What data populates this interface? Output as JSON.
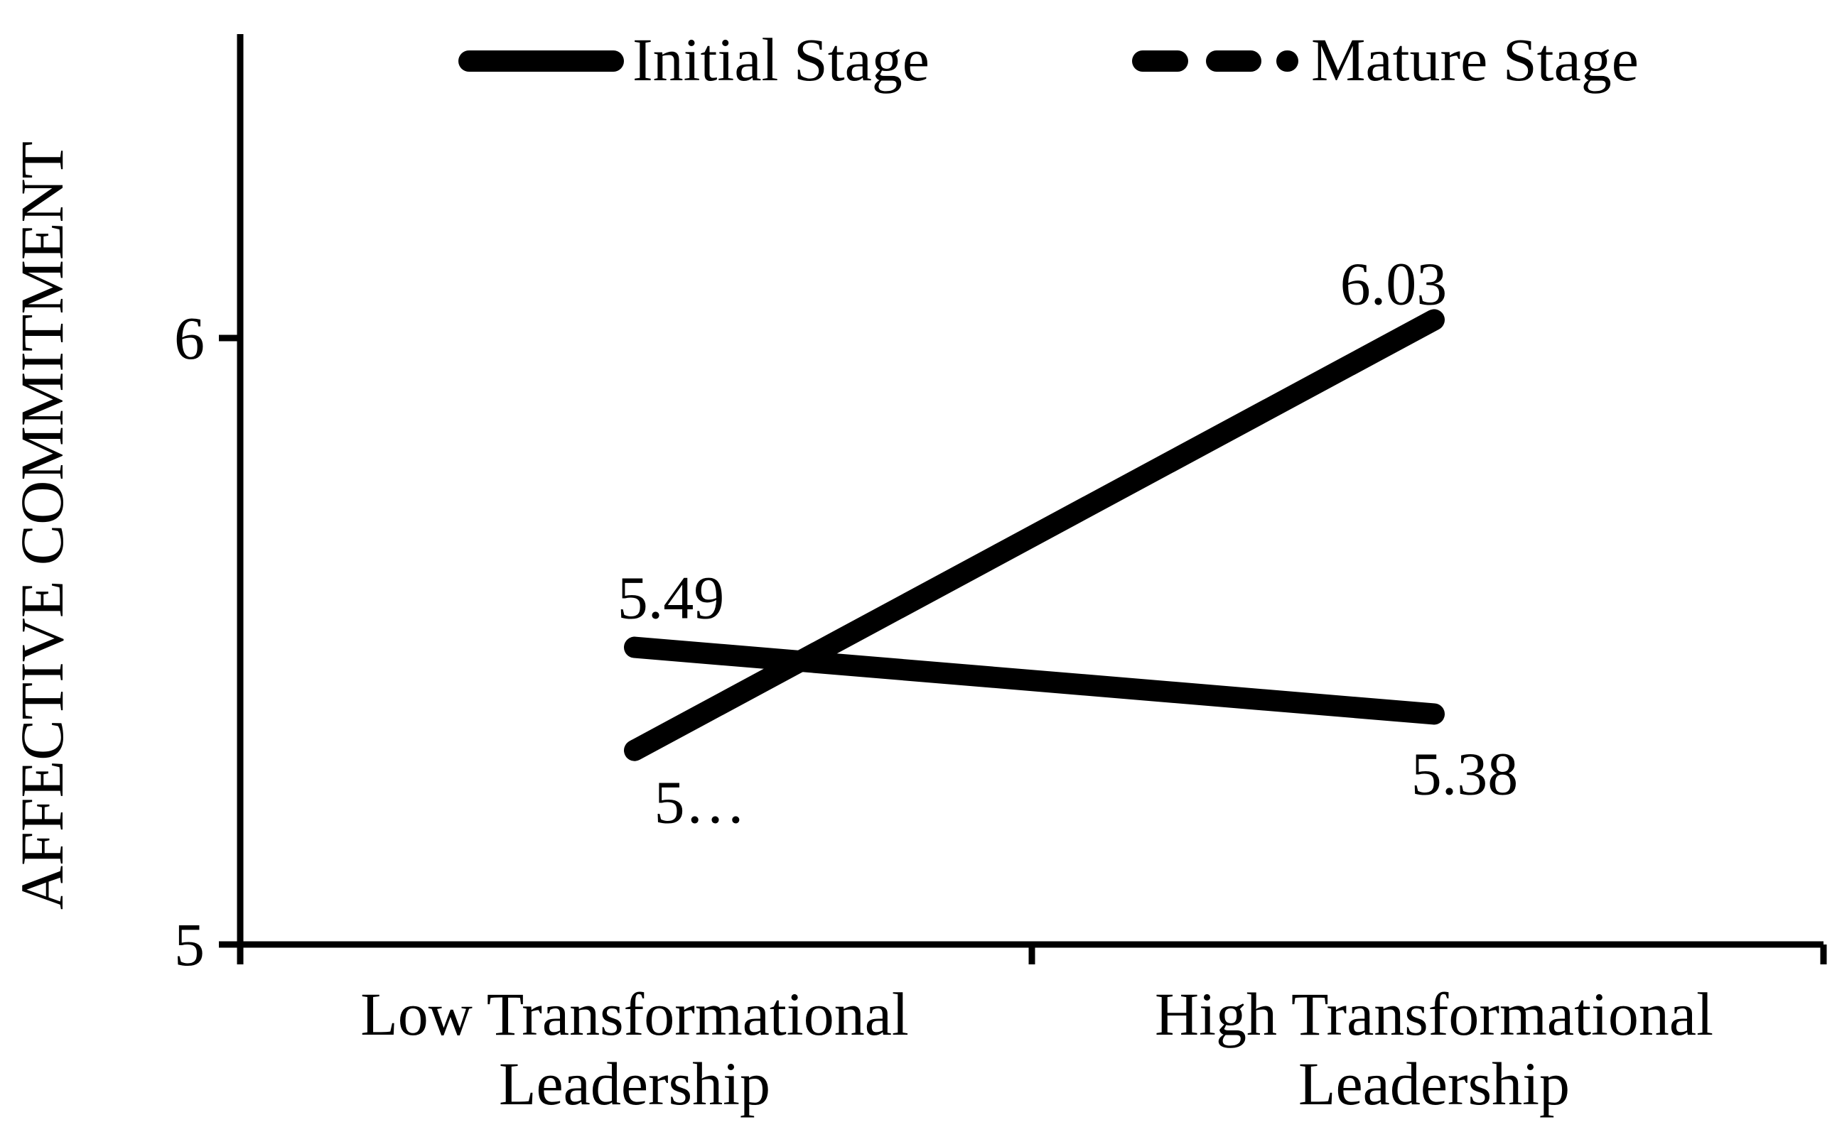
{
  "chart_data": {
    "type": "line",
    "title": "",
    "xlabel": "",
    "ylabel": "AFFECTIVE COMMITMENT",
    "categories": [
      "Low Transformational Leadership",
      "High Transformational Leadership"
    ],
    "series": [
      {
        "name": "Initial Stage",
        "legend_style": "solid",
        "plot_style": "solid",
        "values": [
          5.32,
          6.03
        ],
        "point_labels": [
          "5…",
          "6.03"
        ]
      },
      {
        "name": "Mature Stage",
        "legend_style": "dash-dash-dot",
        "plot_style": "solid",
        "values": [
          5.49,
          5.38
        ],
        "point_labels": [
          "5.49",
          "5.38"
        ]
      }
    ],
    "yticks": [
      "5",
      "6"
    ],
    "ytick_values": [
      5,
      6
    ],
    "ylim": [
      5,
      6.5
    ],
    "grid": false,
    "legend_position": "top",
    "colors": {
      "line": "#000000",
      "text": "#000000",
      "axis": "#000000",
      "background": "#ffffff"
    }
  }
}
